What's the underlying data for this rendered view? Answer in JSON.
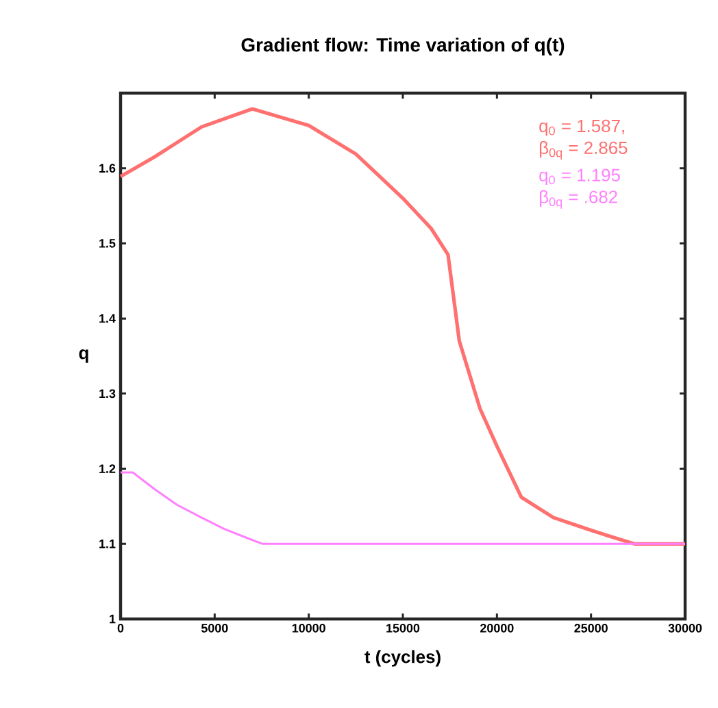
{
  "chart_data": {
    "type": "line",
    "title": "Gradient flow: Time variation of q(t)",
    "xlabel": "t (cycles)",
    "ylabel": "q",
    "xlim": [
      0,
      30000
    ],
    "ylim": [
      1,
      1.7
    ],
    "xticks": [
      0,
      5000,
      10000,
      15000,
      20000,
      25000,
      30000
    ],
    "yticks": [
      1,
      1.1,
      1.2,
      1.3,
      1.4,
      1.5,
      1.6
    ],
    "grid": false,
    "legend": "top right",
    "series": [
      {
        "name": "q$_{0}$ = 1.587, β$_{0q}$ = 2.865",
        "color": "#ff7070",
        "x": [
          0,
          1800,
          4300,
          7000,
          10000,
          12500,
          15000,
          16500,
          17400,
          18000,
          19100,
          20000,
          21300,
          23000,
          24900,
          26000,
          27300,
          30000
        ],
        "values": [
          1.589,
          1.615,
          1.655,
          1.679,
          1.657,
          1.619,
          1.56,
          1.52,
          1.485,
          1.37,
          1.28,
          1.23,
          1.162,
          1.135,
          1.119,
          1.11,
          1.1,
          1.1
        ]
      },
      {
        "name": "q$_{0}$ = 1.195 β$_{0q}$ = .682",
        "color": "#ff80ff",
        "x": [
          0,
          650,
          1800,
          3000,
          4300,
          5500,
          6700,
          7550,
          30000
        ],
        "values": [
          1.195,
          1.195,
          1.173,
          1.152,
          1.135,
          1.12,
          1.108,
          1.1,
          1.1
        ]
      }
    ]
  }
}
